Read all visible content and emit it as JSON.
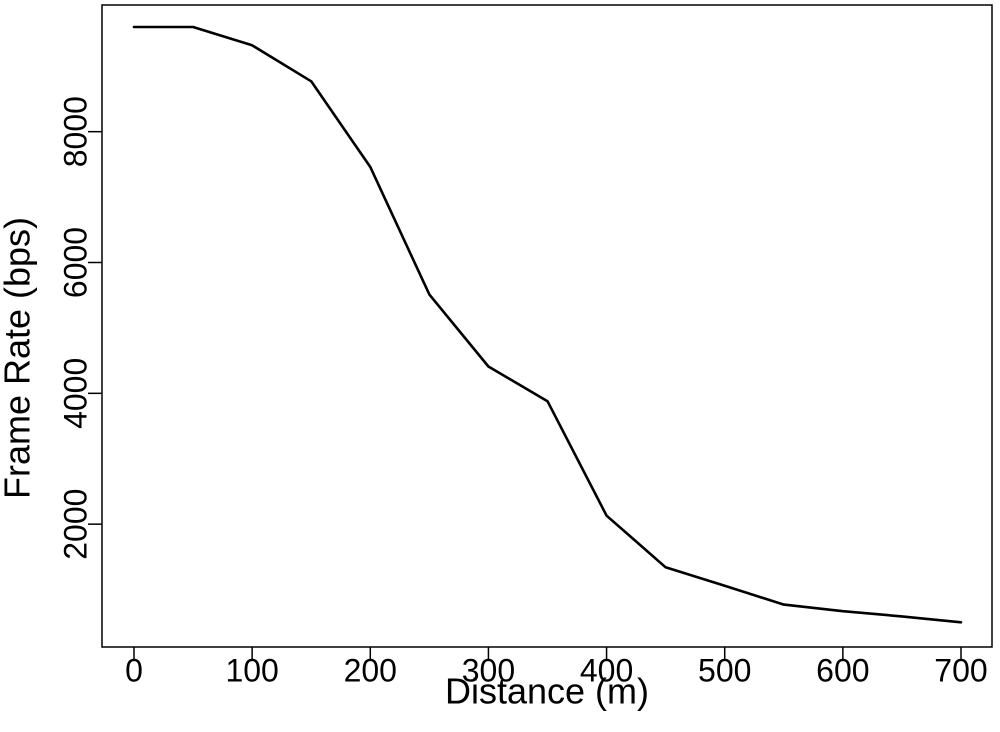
{
  "chart_data": {
    "type": "line",
    "title": "",
    "xlabel": "Distance (m)",
    "ylabel": "Frame Rate (bps)",
    "xlim": [
      0,
      700
    ],
    "ylim": [
      0,
      9600
    ],
    "xticks": [
      0,
      100,
      200,
      300,
      400,
      500,
      600,
      700
    ],
    "yticks": [
      2000,
      4000,
      6000,
      8000
    ],
    "xtick_labels": [
      "0",
      "100",
      "200",
      "300",
      "400",
      "500",
      "600",
      "700"
    ],
    "ytick_labels": [
      "2000",
      "4000",
      "6000",
      "8000"
    ],
    "grid": false,
    "line_color": "#000000",
    "series": [
      {
        "x": [
          0,
          50,
          100,
          150,
          200,
          250,
          300,
          350,
          400,
          450,
          500,
          550,
          600,
          650,
          700
        ],
        "y": [
          9600,
          9600,
          9320,
          8770,
          7460,
          5510,
          4410,
          3880,
          2130,
          1340,
          1060,
          770,
          670,
          590,
          500
        ]
      }
    ]
  }
}
